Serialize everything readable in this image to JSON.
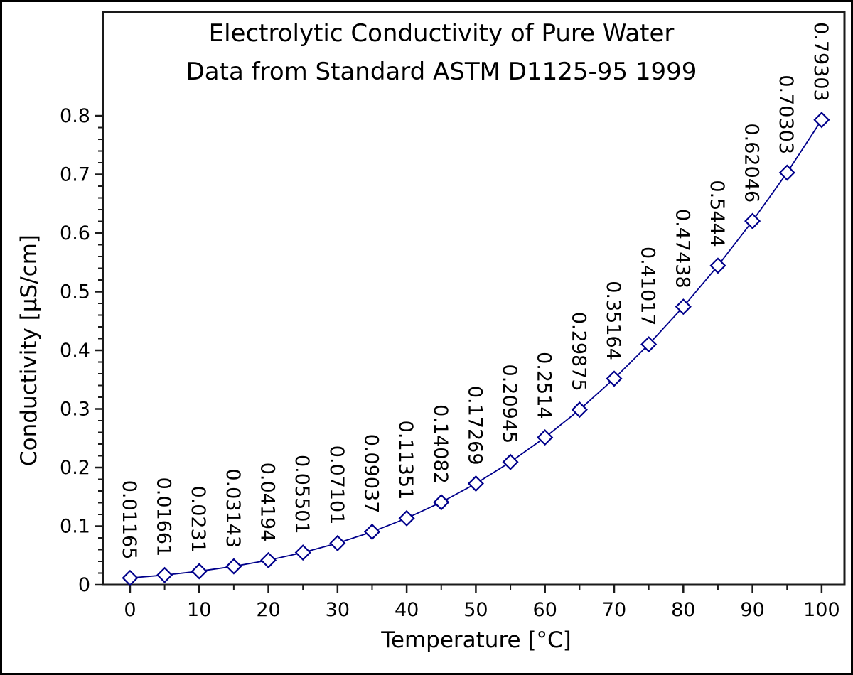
{
  "figure": {
    "title_line1": "Electrolytic Conductivity of Pure Water",
    "title_line2": "Data from Standard ASTM D1125-95 1999",
    "xlabel": "Temperature [°C]",
    "ylabel": "Conductivity [µS/cm]"
  },
  "chart_data": {
    "type": "line",
    "title": "Electrolytic Conductivity of Pure Water",
    "subtitle": "Data from Standard ASTM D1125-95 1999",
    "xlabel": "Temperature [°C]",
    "ylabel": "Conductivity [µS/cm]",
    "x": [
      0,
      5,
      10,
      15,
      20,
      25,
      30,
      35,
      40,
      45,
      50,
      55,
      60,
      65,
      70,
      75,
      80,
      85,
      90,
      95,
      100
    ],
    "values": [
      0.01165,
      0.01661,
      0.0231,
      0.03143,
      0.04194,
      0.05501,
      0.07101,
      0.09037,
      0.11351,
      0.14082,
      0.17269,
      0.20945,
      0.2514,
      0.29875,
      0.35164,
      0.41017,
      0.47438,
      0.5444,
      0.62046,
      0.70303,
      0.79303
    ],
    "point_labels": [
      "0.01165",
      "0.01661",
      "0.0231",
      "0.03143",
      "0.04194",
      "0.05501",
      "0.07101",
      "0.09037",
      "0.11351",
      "0.14082",
      "0.17269",
      "0.20945",
      "0.2514",
      "0.29875",
      "0.35164",
      "0.41017",
      "0.47438",
      "0.5444",
      "0.62046",
      "0.70303",
      "0.79303"
    ],
    "xlim": [
      -3.9,
      103.3
    ],
    "ylim": [
      0,
      0.977
    ],
    "x_major_ticks": [
      0,
      10,
      20,
      30,
      40,
      50,
      60,
      70,
      80,
      90,
      100
    ],
    "x_tick_labels": [
      "0",
      "10",
      "20",
      "30",
      "40",
      "50",
      "60",
      "70",
      "80",
      "90",
      "100"
    ],
    "x_minor_step": 5,
    "y_major_ticks": [
      0,
      0.1,
      0.2,
      0.3,
      0.4,
      0.5,
      0.6,
      0.7,
      0.8
    ],
    "y_tick_labels": [
      "0",
      "0.1",
      "0.2",
      "0.3",
      "0.4",
      "0.5",
      "0.6",
      "0.7",
      "0.8"
    ],
    "y_minor_step": 0.02,
    "grid": false,
    "legend": "none",
    "marker": "open-diamond",
    "line_color": "#00008B",
    "marker_fill": "#ffffff",
    "axis_color": "#1a1a1a",
    "text_color": "#000000"
  }
}
